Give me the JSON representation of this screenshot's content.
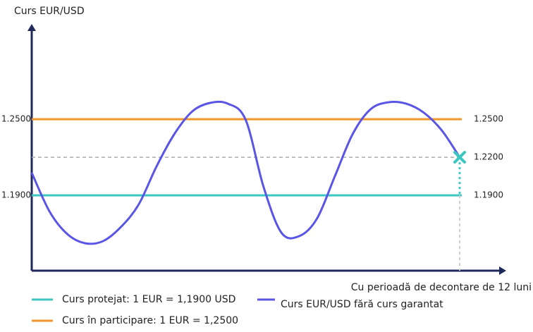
{
  "chart_data": {
    "type": "line",
    "title": "Curs EUR/USD",
    "x_label": "Cu perioadă de decontare de 12 luni",
    "ylim": [
      1.1306,
      1.3217
    ],
    "yticks": [
      {
        "value": 1.25,
        "label": "1.2500"
      },
      {
        "value": 1.19,
        "label": "1.1900"
      }
    ],
    "axis_color": "#1f2a5a",
    "categories": [
      null,
      null,
      null,
      null,
      null,
      null,
      null,
      null,
      null,
      null,
      null,
      null,
      null,
      null,
      null,
      null,
      null,
      null,
      null,
      null,
      null,
      null,
      null,
      null,
      null
    ],
    "series": [
      {
        "name": "Curs EUR/USD fără curs garantat",
        "color": "#5b55e6",
        "values": [
          1.2078,
          1.1772,
          1.1594,
          1.1522,
          1.1539,
          1.165,
          1.1828,
          1.2128,
          1.2383,
          1.2561,
          1.2628,
          1.2622,
          1.2494,
          1.1967,
          1.1606,
          1.1578,
          1.1717,
          1.205,
          1.2383,
          1.2578,
          1.2633,
          1.2622,
          1.255,
          1.2411,
          1.22
        ]
      }
    ],
    "reference_lines": [
      {
        "name": "Curs protejat: 1 EUR = 1,1900 USD",
        "value": 1.19,
        "label": "1.1900",
        "color": "#3cc8c0"
      },
      {
        "name": "Curs în participare: 1 EUR = 1,2500",
        "value": 1.25,
        "label": "1.2500",
        "color": "#f0962a"
      }
    ],
    "final_value": {
      "value": 1.22,
      "label": "1.2200",
      "color": "#3cc8c0"
    }
  }
}
